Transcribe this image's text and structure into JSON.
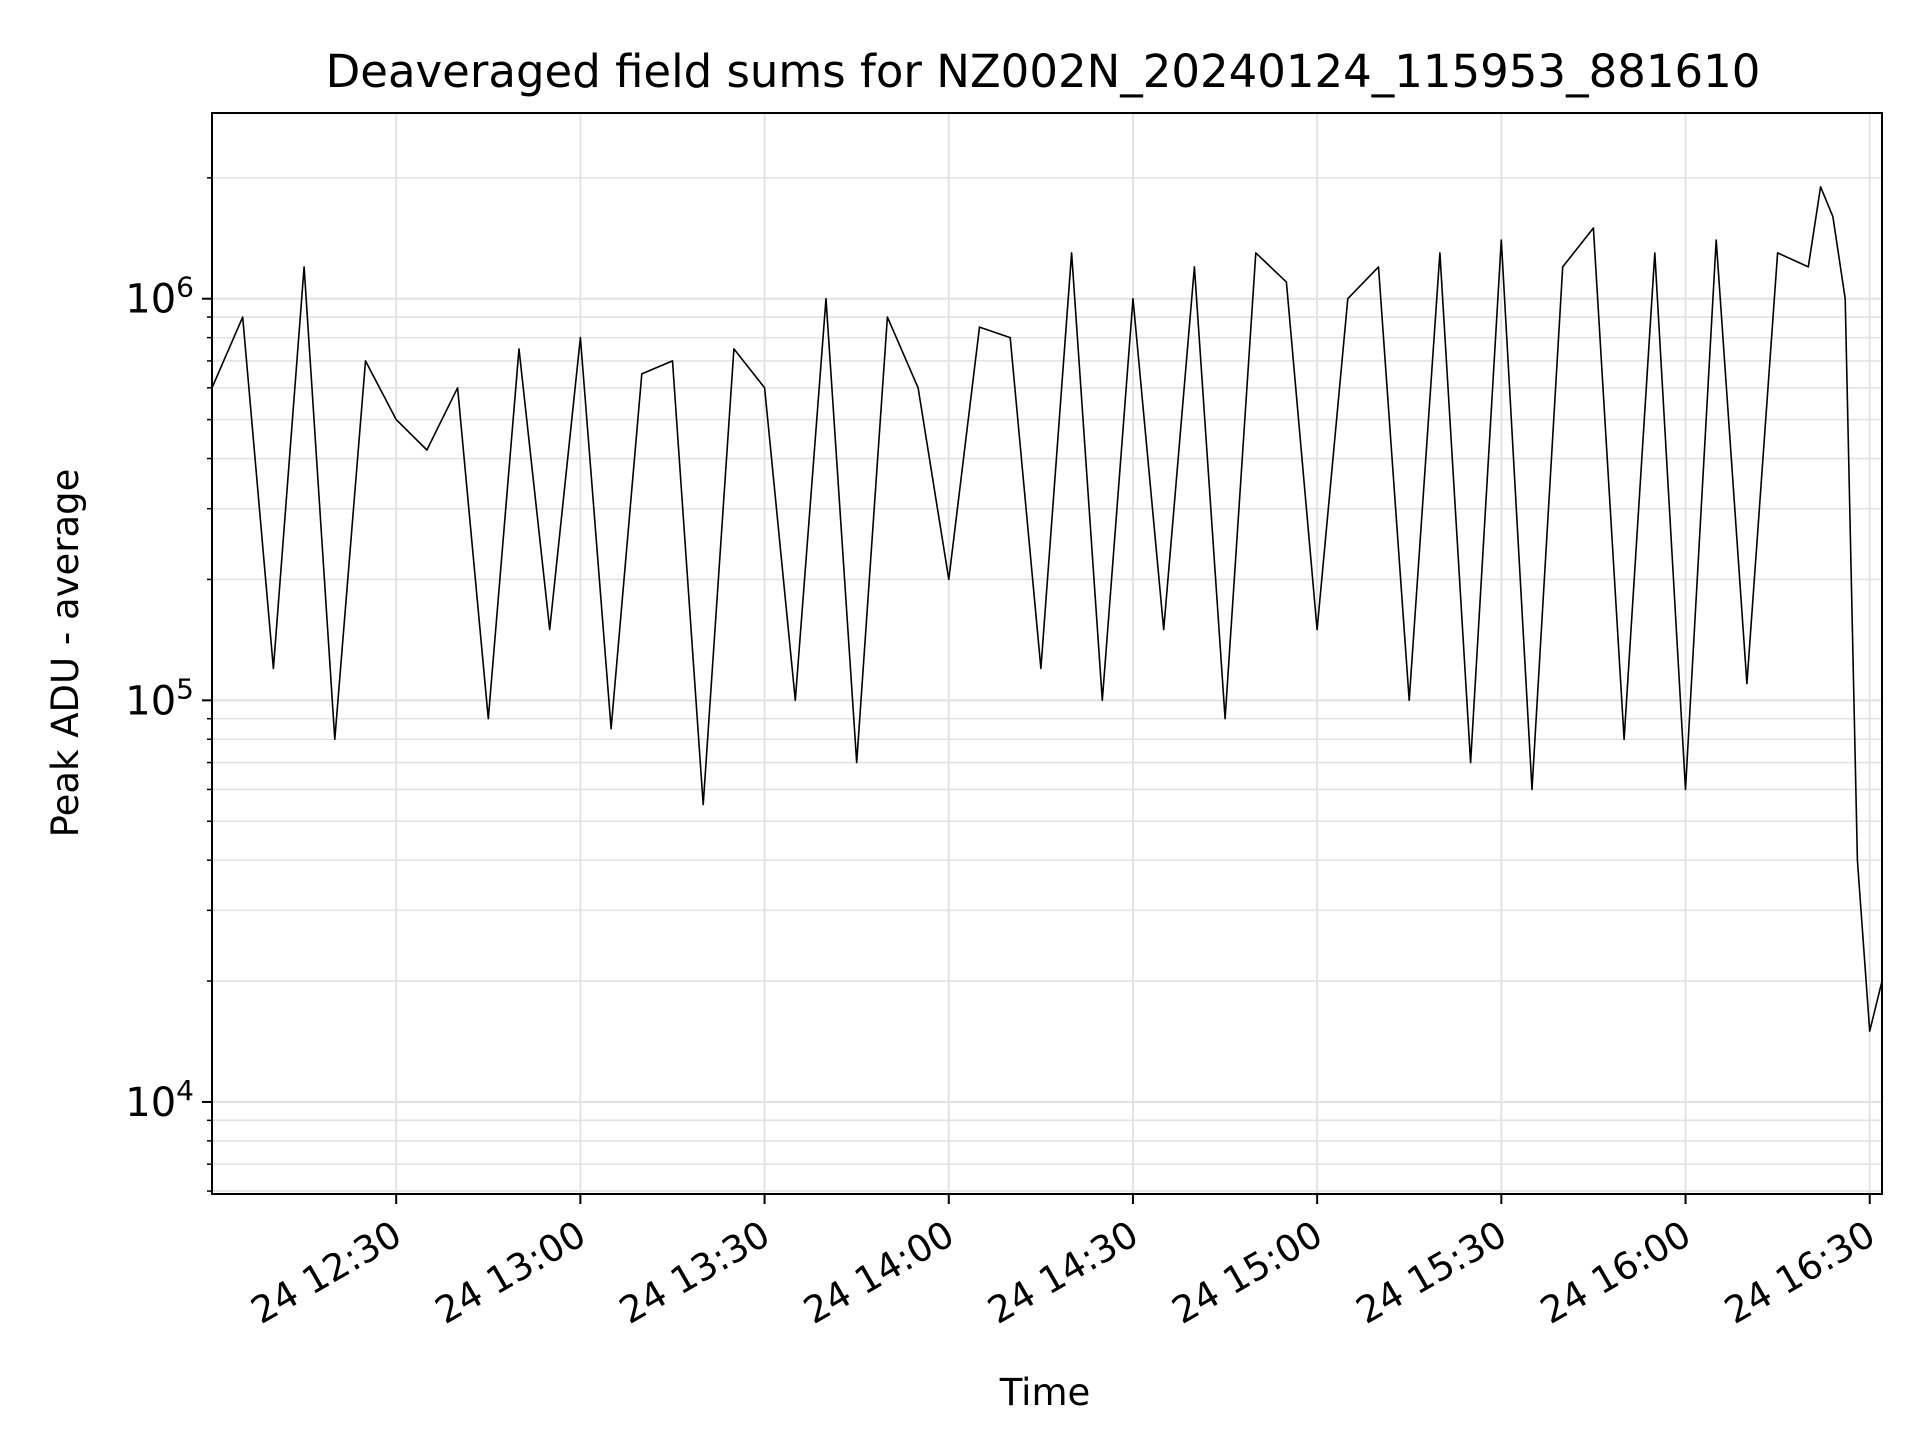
{
  "chart_data": {
    "type": "line",
    "title": "Deaveraged field sums for NZ002N_20240124_115953_881610",
    "xlabel": "Time",
    "ylabel": "Peak ADU - average",
    "yscale": "log",
    "ylim": [
      5900,
      2900000
    ],
    "xlim": [
      "2024-01-24 12:00",
      "2024-01-24 16:32"
    ],
    "x_ticks": [
      "24 12:30",
      "24 13:00",
      "24 13:30",
      "24 14:00",
      "24 14:30",
      "24 15:00",
      "24 15:30",
      "24 16:00",
      "24 16:30"
    ],
    "y_ticks": [
      {
        "base": "10",
        "exp": "4",
        "value": 10000
      },
      {
        "base": "10",
        "exp": "5",
        "value": 100000
      },
      {
        "base": "10",
        "exp": "6",
        "value": 1000000
      }
    ],
    "grid": true,
    "line_color": "#000000",
    "series": [
      {
        "x": [
          "12:00",
          "12:05",
          "12:10",
          "12:15",
          "12:20",
          "12:25",
          "12:30",
          "12:35",
          "12:40",
          "12:45",
          "12:50",
          "12:55",
          "13:00",
          "13:05",
          "13:10",
          "13:15",
          "13:20",
          "13:25",
          "13:30",
          "13:35",
          "13:40",
          "13:45",
          "13:50",
          "13:55",
          "14:00",
          "14:05",
          "14:10",
          "14:15",
          "14:20",
          "14:25",
          "14:30",
          "14:35",
          "14:40",
          "14:45",
          "14:50",
          "14:55",
          "15:00",
          "15:05",
          "15:10",
          "15:15",
          "15:20",
          "15:25",
          "15:30",
          "15:35",
          "15:40",
          "15:45",
          "15:50",
          "15:55",
          "16:00",
          "16:05",
          "16:10",
          "16:15",
          "16:20",
          "16:22",
          "16:24",
          "16:26",
          "16:28",
          "16:30",
          "16:32"
        ],
        "y": [
          600000,
          900000,
          120000,
          1200000,
          80000,
          700000,
          500000,
          420000,
          600000,
          90000,
          750000,
          150000,
          800000,
          85000,
          650000,
          700000,
          55000,
          750000,
          600000,
          100000,
          1000000,
          70000,
          900000,
          600000,
          200000,
          850000,
          800000,
          120000,
          1300000,
          100000,
          1000000,
          150000,
          1200000,
          90000,
          1300000,
          1100000,
          150000,
          1000000,
          1200000,
          100000,
          1300000,
          70000,
          1400000,
          60000,
          1200000,
          1500000,
          80000,
          1300000,
          60000,
          1400000,
          110000,
          1300000,
          1200000,
          1900000,
          1600000,
          1000000,
          40000,
          15000,
          20000
        ]
      }
    ]
  }
}
